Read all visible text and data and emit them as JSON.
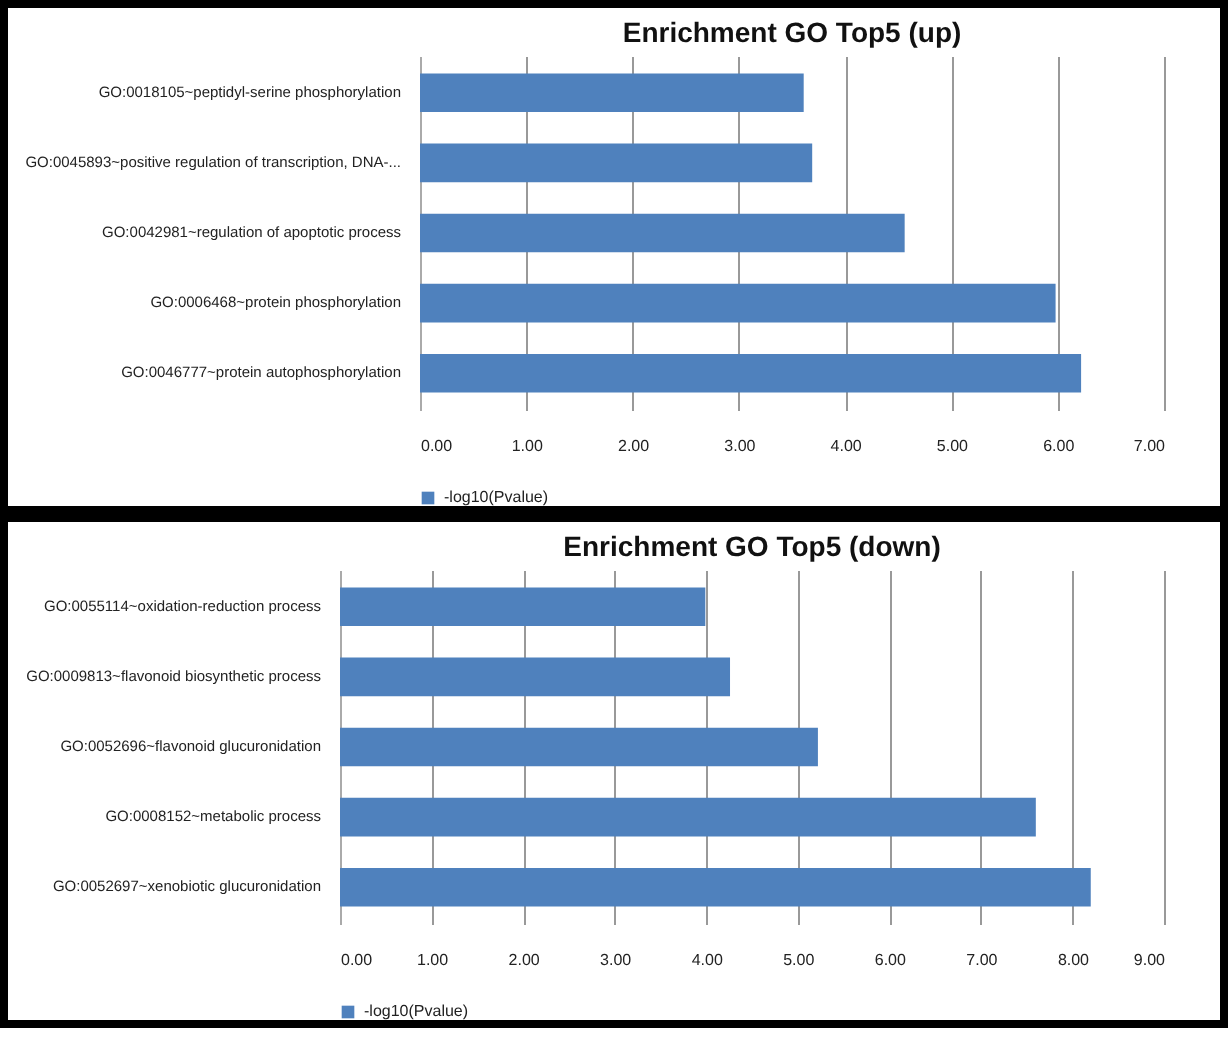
{
  "chart_data": [
    {
      "type": "bar",
      "orientation": "horizontal",
      "title": "Enrichment  GO Top5 (up)",
      "categories": [
        "GO:0018105~peptidyl-serine phosphorylation",
        "GO:0045893~positive regulation of transcription, DNA-...",
        "GO:0042981~regulation of apoptotic process",
        "GO:0006468~protein phosphorylation",
        "GO:0046777~protein autophosphorylation"
      ],
      "series": [
        {
          "name": "-log10(Pvalue)",
          "color": "#4f81bd",
          "values": [
            3.61,
            3.69,
            4.56,
            5.98,
            6.22
          ]
        }
      ],
      "xlim": [
        0,
        7
      ],
      "xticks": [
        {
          "value": 0,
          "label": "0.00"
        },
        {
          "value": 1,
          "label": "1.00"
        },
        {
          "value": 2,
          "label": "2.00"
        },
        {
          "value": 3,
          "label": "3.00"
        },
        {
          "value": 4,
          "label": "4.00"
        },
        {
          "value": 5,
          "label": "5.00"
        },
        {
          "value": 6,
          "label": "6.00"
        },
        {
          "value": 7,
          "label": "7.00"
        }
      ],
      "grid": "x",
      "legend": "bottom"
    },
    {
      "type": "bar",
      "orientation": "horizontal",
      "title": "Enrichment  GO Top5 (down)",
      "categories": [
        "GO:0055114~oxidation-reduction process",
        "GO:0009813~flavonoid biosynthetic process",
        "GO:0052696~flavonoid glucuronidation",
        "GO:0008152~metabolic process",
        "GO:0052697~xenobiotic glucuronidation"
      ],
      "series": [
        {
          "name": "-log10(Pvalue)",
          "color": "#4f81bd",
          "values": [
            3.99,
            4.26,
            5.22,
            7.6,
            8.2
          ]
        }
      ],
      "xlim": [
        0,
        9
      ],
      "xticks": [
        {
          "value": 0,
          "label": "0.00"
        },
        {
          "value": 1,
          "label": "1.00"
        },
        {
          "value": 2,
          "label": "2.00"
        },
        {
          "value": 3,
          "label": "3.00"
        },
        {
          "value": 4,
          "label": "4.00"
        },
        {
          "value": 5,
          "label": "5.00"
        },
        {
          "value": 6,
          "label": "6.00"
        },
        {
          "value": 7,
          "label": "7.00"
        },
        {
          "value": 8,
          "label": "8.00"
        },
        {
          "value": 9,
          "label": "9.00"
        }
      ],
      "grid": "x",
      "legend": "bottom"
    }
  ]
}
